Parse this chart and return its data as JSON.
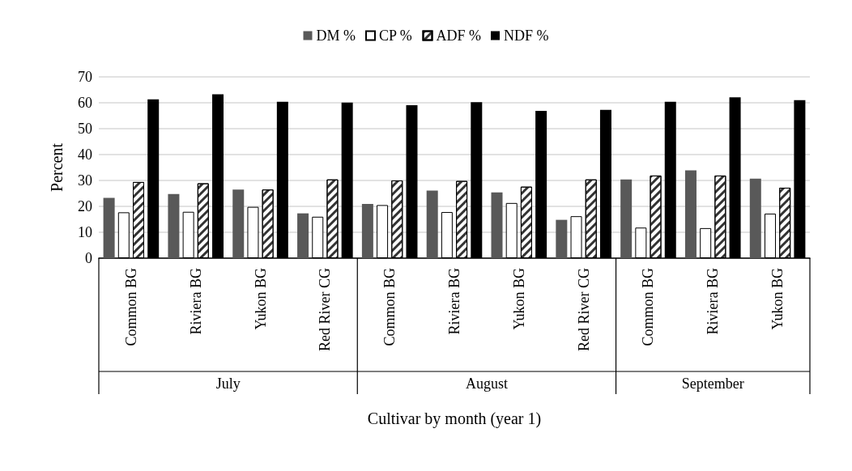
{
  "chart_data": {
    "type": "bar",
    "xlabel": "Cultivar by month (year 1)",
    "ylabel": "Percent",
    "categories": [
      "Common BG",
      "Riviera BG",
      "Yukon BG",
      "Red River CG",
      "Common BG",
      "Riviera BG",
      "Yukon BG",
      "Red River CG",
      "Common BG",
      "Riviera BG",
      "Yukon BG"
    ],
    "series": [
      {
        "name": "DM %",
        "color": "#595959",
        "values": [
          23.3,
          24.8,
          26.5,
          17.3,
          20.9,
          26.1,
          25.4,
          14.8,
          30.4,
          33.9,
          30.7
        ]
      },
      {
        "name": "CP %",
        "color": "#ffffff",
        "values": [
          17.7,
          17.9,
          19.8,
          16.0,
          20.5,
          17.8,
          21.3,
          16.2,
          11.8,
          11.6,
          17.2
        ]
      },
      {
        "name": "ADF %",
        "color": "#ffffff",
        "values": [
          29.4,
          28.9,
          26.5,
          30.4,
          30.0,
          29.8,
          27.6,
          30.4,
          31.9,
          31.9,
          27.2
        ]
      },
      {
        "name": "NDF %",
        "color": "#000000",
        "values": [
          61.3,
          63.3,
          60.4,
          60.1,
          59.1,
          60.2,
          56.9,
          57.3,
          60.4,
          62.1,
          61.0
        ]
      }
    ],
    "annotations": [
      "July",
      "August",
      "September"
    ],
    "ylim": [
      0,
      70
    ],
    "yticks": [
      0,
      10,
      20,
      30,
      40,
      50,
      60,
      70
    ],
    "grid": "y",
    "legend": "top"
  }
}
